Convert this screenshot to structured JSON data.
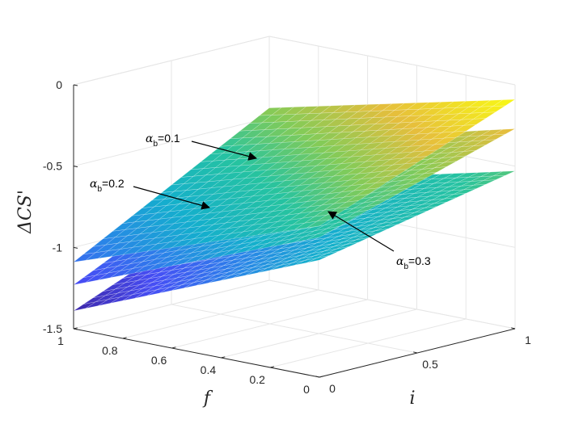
{
  "chart_data": {
    "type": "surface",
    "title": "",
    "xlabel": "i",
    "ylabel": "f",
    "zlabel": "ΔCS'",
    "xlim": [
      0,
      1
    ],
    "ylim": [
      0,
      1
    ],
    "zlim": [
      -1.5,
      0
    ],
    "x_ticks": [
      {
        "v": 0,
        "label": "0"
      },
      {
        "v": 0.5,
        "label": "0.5"
      },
      {
        "v": 1,
        "label": "1"
      }
    ],
    "y_ticks": [
      {
        "v": 0,
        "label": "0"
      },
      {
        "v": 0.2,
        "label": "0.2"
      },
      {
        "v": 0.4,
        "label": "0.4"
      },
      {
        "v": 0.6,
        "label": "0.6"
      },
      {
        "v": 0.8,
        "label": "0.8"
      },
      {
        "v": 1,
        "label": "1"
      }
    ],
    "z_ticks": [
      {
        "v": 0,
        "label": "0"
      },
      {
        "v": -0.5,
        "label": "-0.5"
      },
      {
        "v": -1,
        "label": "-1"
      },
      {
        "v": -1.5,
        "label": "-1.5"
      }
    ],
    "grid": true,
    "colormap": "parula",
    "surfaces": [
      {
        "alpha_b": 0.1,
        "corners": {
          "i0_f1": -1.09,
          "i0_f0": -0.57,
          "i1_f0": -0.09,
          "i1_f1": -0.44
        }
      },
      {
        "alpha_b": 0.2,
        "corners": {
          "i0_f1": -1.23,
          "i0_f0": -0.64,
          "i1_f0": -0.27,
          "i1_f1": -0.65
        }
      },
      {
        "alpha_b": 0.3,
        "corners": {
          "i0_f1": -1.39,
          "i0_f0": -0.78,
          "i1_f0": -0.53,
          "i1_f1": -0.89
        }
      }
    ],
    "annotations": [
      {
        "label": "α",
        "sub": "b",
        "value": "=0.1",
        "surface": 0
      },
      {
        "label": "α",
        "sub": "b",
        "value": "=0.2",
        "surface": 1
      },
      {
        "label": "α",
        "sub": "b",
        "value": "=0.3",
        "surface": 2
      }
    ]
  }
}
